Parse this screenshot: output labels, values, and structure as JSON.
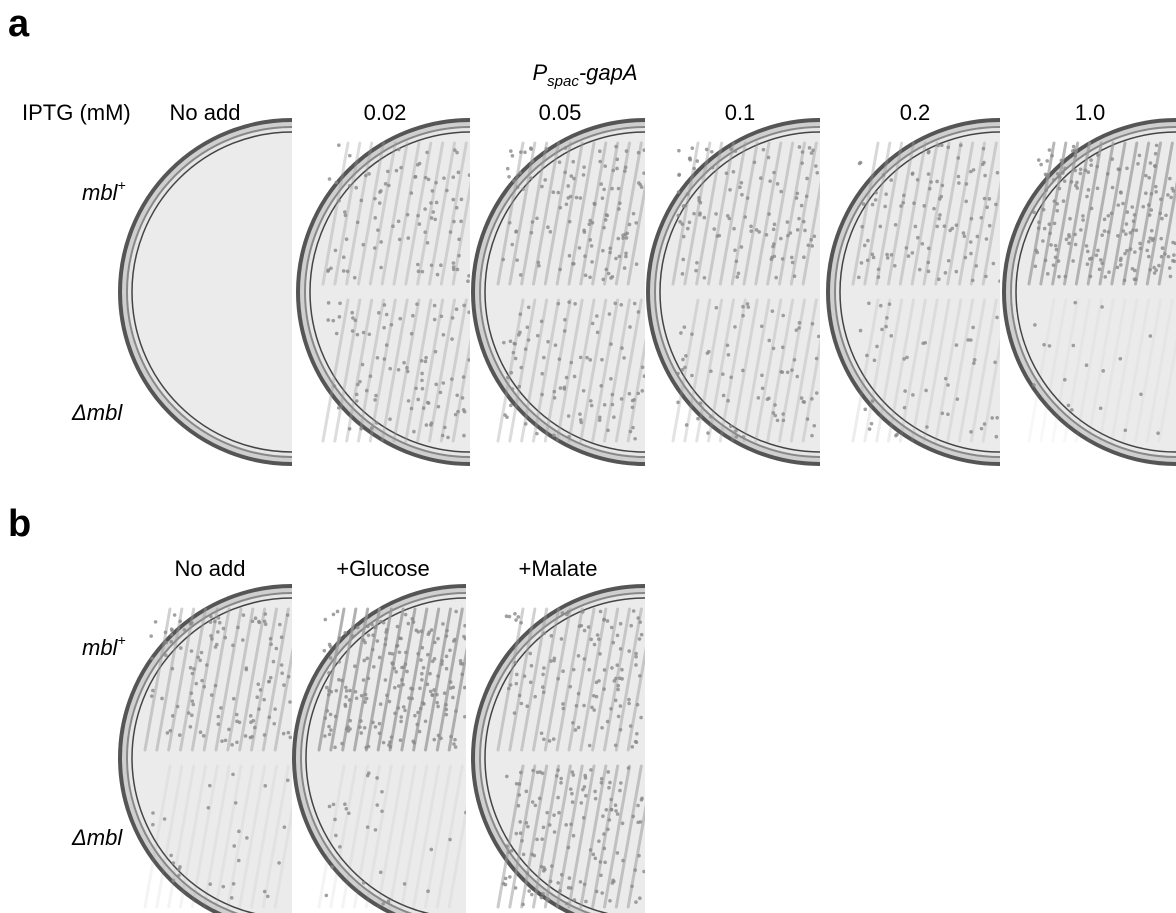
{
  "panel_a": {
    "letter": "a",
    "construct": {
      "promoter": "P",
      "promoter_subscript": "spac",
      "gene": "-gapA"
    },
    "row_header": "IPTG (mM)",
    "columns": [
      "No add",
      "0.02",
      "0.05",
      "0.1",
      "0.2",
      "1.0"
    ],
    "rows": [
      {
        "name": "mbl",
        "superscript": "+"
      },
      {
        "name": "Δmbl"
      }
    ]
  },
  "panel_b": {
    "letter": "b",
    "columns": [
      "No add",
      "+Glucose",
      "+Malate"
    ],
    "rows": [
      {
        "name": "mbl",
        "superscript": "+"
      },
      {
        "name": "Δmbl"
      }
    ]
  }
}
